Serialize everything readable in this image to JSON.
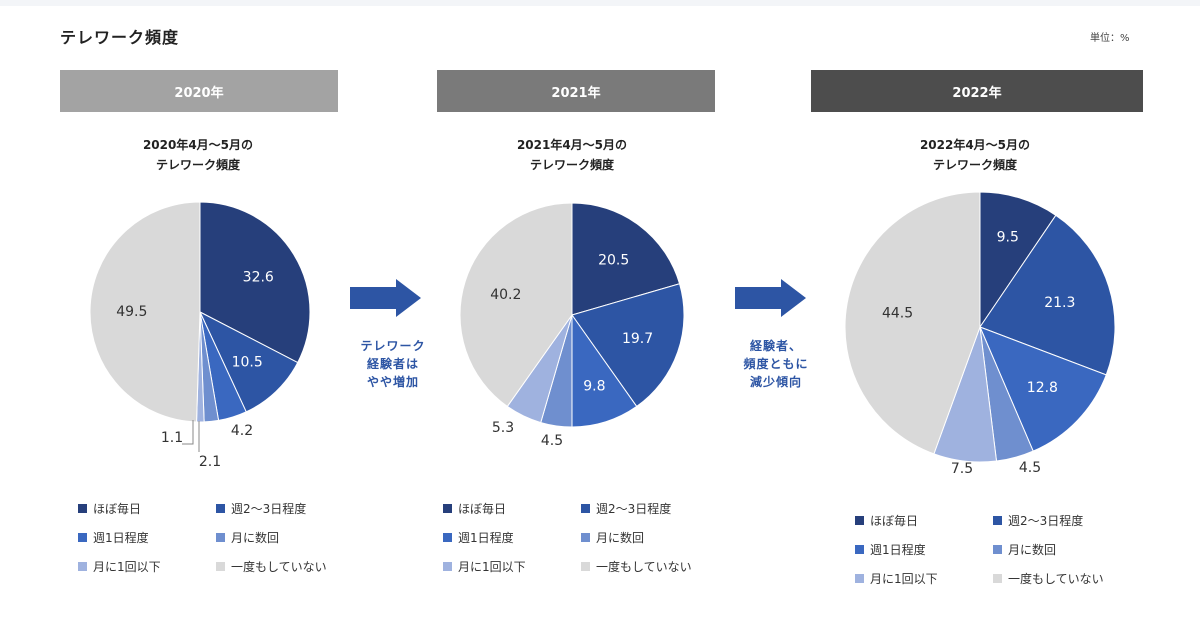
{
  "page": {
    "title": "テレワーク頻度",
    "unit": "単位：%"
  },
  "categories_legend": [
    "ほぼ毎日",
    "週2～3日程度",
    "週1日程度",
    "月に数回",
    "月に1回以下",
    "一度もしていない"
  ],
  "colors": [
    "#263f7b",
    "#2d55a4",
    "#3a68c0",
    "#6f8fcf",
    "#9fb2df",
    "#d9d9d9"
  ],
  "label_colors": [
    "#ffffff",
    "#ffffff",
    "#ffffff",
    "#333333",
    "#333333",
    "#333333"
  ],
  "panels": [
    {
      "year": "2020年",
      "year_color": "#a3a3a3",
      "subtitle_line1": "2020年4月～5月の",
      "subtitle_line2": "テレワーク頻度",
      "value_labels": [
        "32.6",
        "10.5",
        "4.2",
        "2.1",
        "1.1",
        "49.5"
      ]
    },
    {
      "year": "2021年",
      "year_color": "#7a7a7a",
      "subtitle_line1": "2021年4月～5月の",
      "subtitle_line2": "テレワーク頻度",
      "value_labels": [
        "20.5",
        "19.7",
        "9.8",
        "4.5",
        "5.3",
        "40.2"
      ]
    },
    {
      "year": "2022年",
      "year_color": "#4d4d4d",
      "subtitle_line1": "2022年4月～5月の",
      "subtitle_line2": "テレワーク頻度",
      "value_labels": [
        "9.5",
        "21.3",
        "12.8",
        "4.5",
        "7.5",
        "44.5"
      ]
    }
  ],
  "notes": [
    {
      "line1": "テレワーク",
      "line2": "経験者は",
      "line3": "やや増加"
    },
    {
      "line1": "経験者、",
      "line2": "頻度ともに",
      "line3": "減少傾向"
    }
  ],
  "chart_data": [
    {
      "type": "pie",
      "title": "2020年4月～5月の テレワーク頻度",
      "categories": [
        "ほぼ毎日",
        "週2～3日程度",
        "週1日程度",
        "月に数回",
        "月に1回以下",
        "一度もしていない"
      ],
      "values": [
        32.6,
        10.5,
        4.2,
        2.1,
        1.1,
        49.5
      ]
    },
    {
      "type": "pie",
      "title": "2021年4月～5月の テレワーク頻度",
      "categories": [
        "ほぼ毎日",
        "週2～3日程度",
        "週1日程度",
        "月に数回",
        "月に1回以下",
        "一度もしていない"
      ],
      "values": [
        20.5,
        19.7,
        9.8,
        4.5,
        5.3,
        40.2
      ]
    },
    {
      "type": "pie",
      "title": "2022年4月～5月の テレワーク頻度",
      "categories": [
        "ほぼ毎日",
        "週2～3日程度",
        "週1日程度",
        "月に数回",
        "月に1回以下",
        "一度もしていない"
      ],
      "values": [
        9.5,
        21.3,
        12.8,
        4.5,
        7.5,
        44.5
      ]
    }
  ]
}
